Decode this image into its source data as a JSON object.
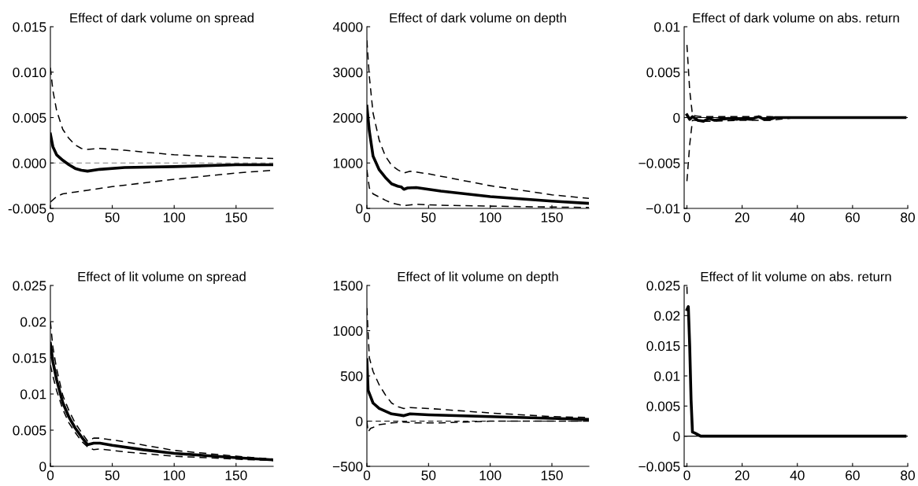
{
  "chart_data": [
    {
      "type": "line",
      "title": "Effect of dark volume on spread",
      "xlim": [
        0,
        180
      ],
      "xticks": [
        0,
        50,
        100,
        150
      ],
      "ylim": [
        -0.005,
        0.015
      ],
      "yticks": [
        {
          "value": -0.005,
          "label": "-0.005"
        },
        {
          "value": 0,
          "label": "0.000"
        },
        {
          "value": 0.005,
          "label": "0.005"
        },
        {
          "value": 0.01,
          "label": "0.010"
        },
        {
          "value": 0.015,
          "label": "0.015"
        }
      ],
      "ref_lines": [
        {
          "axis": "y",
          "value": 0,
          "color": "#808080",
          "line_style": "dashed"
        }
      ],
      "series": [
        {
          "color": "#000000",
          "line_style": "solid",
          "x": [
            0,
            2,
            5,
            10,
            15,
            20,
            25,
            30,
            40,
            60,
            100,
            150,
            180
          ],
          "values": [
            0.0032,
            0.0018,
            0.0009,
            0.0003,
            -0.0002,
            -0.0006,
            -0.0008,
            -0.0009,
            -0.0007,
            -0.0005,
            -0.0004,
            -0.0002,
            -0.0002
          ]
        },
        {
          "color": "#000000",
          "line_style": "dashed",
          "x": [
            0,
            2,
            5,
            10,
            15,
            20,
            25,
            30,
            40,
            60,
            100,
            150,
            180
          ],
          "values": [
            0.0105,
            0.008,
            0.0058,
            0.0037,
            0.0027,
            0.002,
            0.0016,
            0.0015,
            0.0016,
            0.0014,
            0.0009,
            0.0006,
            0.0005
          ]
        },
        {
          "color": "#000000",
          "line_style": "dashed",
          "x": [
            0,
            5,
            10,
            20,
            30,
            50,
            100,
            150,
            180
          ],
          "values": [
            -0.0043,
            -0.0037,
            -0.0034,
            -0.0032,
            -0.003,
            -0.0026,
            -0.0018,
            -0.0011,
            -0.0008
          ]
        }
      ]
    },
    {
      "type": "line",
      "title": "Effect of dark volume on depth",
      "xlim": [
        0,
        180
      ],
      "xticks": [
        0,
        50,
        100,
        150
      ],
      "ylim": [
        0,
        4000
      ],
      "yticks": [
        0,
        1000,
        2000,
        3000,
        4000
      ],
      "series": [
        {
          "color": "#000000",
          "line_style": "solid",
          "x": [
            0,
            2,
            5,
            10,
            15,
            20,
            25,
            28,
            30,
            33,
            40,
            60,
            100,
            150,
            180
          ],
          "values": [
            2250,
            1700,
            1150,
            850,
            680,
            540,
            490,
            470,
            420,
            450,
            460,
            380,
            260,
            160,
            110
          ]
        },
        {
          "color": "#000000",
          "line_style": "dashed",
          "x": [
            0,
            2,
            5,
            10,
            15,
            20,
            25,
            30,
            35,
            50,
            100,
            150,
            180
          ],
          "values": [
            3700,
            2900,
            2100,
            1500,
            1150,
            950,
            850,
            780,
            820,
            760,
            500,
            300,
            220
          ]
        },
        {
          "color": "#000000",
          "line_style": "dashed",
          "x": [
            0,
            2,
            5,
            10,
            15,
            20,
            30,
            40,
            60,
            100,
            150,
            180
          ],
          "values": [
            850,
            450,
            320,
            250,
            180,
            120,
            60,
            90,
            70,
            50,
            30,
            20
          ]
        }
      ]
    },
    {
      "type": "line",
      "title": "Effect of dark volume on abs. return",
      "xlim": [
        -1,
        80
      ],
      "xticks": [
        0,
        20,
        40,
        60,
        80
      ],
      "ylim": [
        -0.01,
        0.01
      ],
      "yticks": [
        {
          "value": -0.01,
          "label": "−0.01"
        },
        {
          "value": -0.005,
          "label": "−0.005"
        },
        0,
        0.005,
        0.01
      ],
      "ref_lines": [
        {
          "axis": "y",
          "value": 0,
          "color": "#000000",
          "line_style": "solid"
        }
      ],
      "series": [
        {
          "color": "#000000",
          "line_style": "dashed",
          "x": [
            0,
            1,
            2,
            3,
            5,
            10,
            20,
            30,
            40,
            79
          ],
          "values": [
            0.008,
            0.003,
            0.0003,
            0.0002,
            0.0001,
            0.0001,
            0.0001,
            0.0001,
            0,
            0
          ]
        },
        {
          "color": "#000000",
          "line_style": "dashed",
          "x": [
            0,
            1,
            2,
            3,
            5,
            10,
            20,
            30,
            40,
            79
          ],
          "values": [
            -0.007,
            -0.003,
            -0.0003,
            -0.0003,
            -0.0004,
            -0.0004,
            -0.0003,
            -0.0003,
            0,
            0
          ]
        },
        {
          "color": "#000000",
          "line_style": "solid",
          "x": [
            0,
            1,
            2,
            4,
            6,
            8,
            10,
            12,
            15,
            18,
            20,
            23,
            26,
            28,
            30,
            32,
            40,
            79
          ],
          "values": [
            0.0003,
            -0.0002,
            0.0001,
            -0.0003,
            -0.0004,
            -0.0001,
            -0.0003,
            -0.0002,
            -0.0001,
            -0.0002,
            -0.0001,
            -0.0002,
            0.0001,
            -0.0002,
            -0.0002,
            0,
            0,
            0
          ]
        }
      ]
    },
    {
      "type": "line",
      "title": "Effect of lit volume on spread",
      "xlim": [
        0,
        180
      ],
      "xticks": [
        0,
        50,
        100,
        150
      ],
      "ylim": [
        0,
        0.025
      ],
      "yticks": [
        0,
        0.005,
        0.01,
        0.015,
        0.02,
        0.025
      ],
      "series": [
        {
          "color": "#000000",
          "line_style": "solid",
          "x": [
            0,
            2,
            5,
            10,
            15,
            20,
            25,
            30,
            35,
            40,
            50,
            75,
            100,
            125,
            150,
            180
          ],
          "values": [
            0.017,
            0.0145,
            0.012,
            0.0088,
            0.0068,
            0.0053,
            0.0041,
            0.003,
            0.0032,
            0.0032,
            0.0029,
            0.0023,
            0.0018,
            0.0015,
            0.0012,
            0.0009
          ]
        },
        {
          "color": "#000000",
          "line_style": "dashed",
          "x": [
            0,
            2,
            5,
            10,
            15,
            20,
            25,
            30,
            35,
            40,
            60,
            80,
            100,
            150,
            180
          ],
          "values": [
            0.02,
            0.0165,
            0.0135,
            0.0098,
            0.0077,
            0.006,
            0.0047,
            0.0035,
            0.0039,
            0.0039,
            0.0034,
            0.0028,
            0.0022,
            0.0014,
            0.001
          ]
        },
        {
          "color": "#000000",
          "line_style": "dashed",
          "x": [
            0,
            2,
            5,
            10,
            15,
            20,
            25,
            30,
            35,
            40,
            60,
            80,
            100,
            150,
            180
          ],
          "values": [
            0.014,
            0.0125,
            0.0105,
            0.0079,
            0.006,
            0.0047,
            0.0035,
            0.0027,
            0.0023,
            0.0024,
            0.002,
            0.0017,
            0.0014,
            0.001,
            0.0008
          ]
        }
      ]
    },
    {
      "type": "line",
      "title": "Effect of lit volume on depth",
      "xlim": [
        0,
        180
      ],
      "xticks": [
        0,
        50,
        100,
        150
      ],
      "ylim": [
        -500,
        1500
      ],
      "yticks": [
        {
          "value": -500,
          "label": "−500"
        },
        0,
        500,
        1000,
        1500
      ],
      "ref_lines": [
        {
          "axis": "y",
          "value": 0,
          "color": "#000000",
          "line_style": "dashed"
        }
      ],
      "series": [
        {
          "color": "#000000",
          "line_style": "solid",
          "x": [
            0,
            1,
            3,
            5,
            10,
            15,
            20,
            30,
            35,
            50,
            100,
            150,
            180
          ],
          "values": [
            680,
            340,
            270,
            200,
            140,
            110,
            80,
            60,
            80,
            70,
            50,
            30,
            20
          ]
        },
        {
          "color": "#000000",
          "line_style": "dashed",
          "x": [
            0,
            2,
            5,
            10,
            15,
            20,
            25,
            30,
            35,
            50,
            100,
            150,
            180
          ],
          "values": [
            1250,
            700,
            550,
            400,
            290,
            200,
            160,
            140,
            150,
            140,
            90,
            50,
            40
          ]
        },
        {
          "color": "#000000",
          "line_style": "dashed",
          "x": [
            0,
            1,
            3,
            5,
            10,
            15,
            20,
            30,
            40,
            60,
            80,
            100,
            150,
            180
          ],
          "values": [
            0,
            -120,
            -80,
            -70,
            -40,
            -30,
            -20,
            -10,
            -20,
            -20,
            -10,
            0,
            0,
            0
          ]
        }
      ]
    },
    {
      "type": "line",
      "title": "Effect of lit volume on abs. return",
      "xlim": [
        -1,
        80
      ],
      "xticks": [
        0,
        20,
        40,
        60,
        80
      ],
      "ylim": [
        -0.005,
        0.025
      ],
      "yticks": [
        {
          "value": -0.005,
          "label": "−0.005"
        },
        0,
        0.005,
        0.01,
        0.015,
        0.02,
        0.025
      ],
      "ref_lines": [
        {
          "axis": "y",
          "value": 0,
          "color": "#000000",
          "line_style": "solid"
        }
      ],
      "series": [
        {
          "color": "#000000",
          "line_style": "dashed",
          "x": [
            0,
            0.1
          ],
          "values": [
            0.0248,
            0.023
          ]
        },
        {
          "color": "#000000",
          "line_style": "solid",
          "x": [
            0,
            0.5,
            1,
            1.5,
            2,
            3,
            5,
            79
          ],
          "values": [
            0.021,
            0.0215,
            0.015,
            0.006,
            0.0007,
            0.0005,
            0,
            0
          ]
        }
      ]
    }
  ]
}
